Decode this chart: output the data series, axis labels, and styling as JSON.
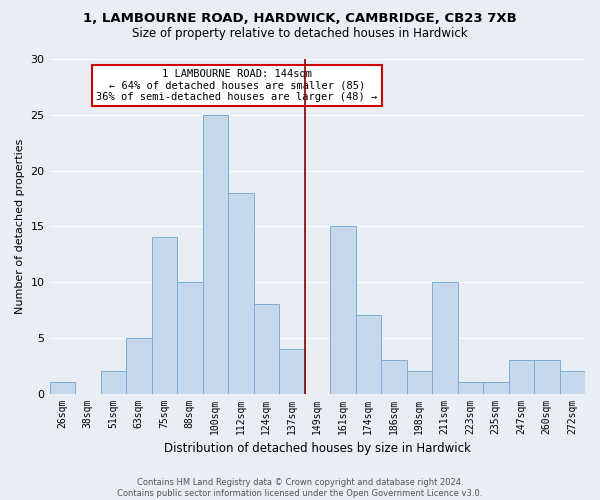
{
  "title1": "1, LAMBOURNE ROAD, HARDWICK, CAMBRIDGE, CB23 7XB",
  "title2": "Size of property relative to detached houses in Hardwick",
  "xlabel": "Distribution of detached houses by size in Hardwick",
  "ylabel": "Number of detached properties",
  "bar_labels": [
    "26sqm",
    "38sqm",
    "51sqm",
    "63sqm",
    "75sqm",
    "88sqm",
    "100sqm",
    "112sqm",
    "124sqm",
    "137sqm",
    "149sqm",
    "161sqm",
    "174sqm",
    "186sqm",
    "198sqm",
    "211sqm",
    "223sqm",
    "235sqm",
    "247sqm",
    "260sqm",
    "272sqm"
  ],
  "bar_values": [
    1,
    0,
    2,
    5,
    14,
    10,
    25,
    18,
    8,
    4,
    0,
    15,
    7,
    3,
    2,
    10,
    1,
    1,
    3,
    3,
    2
  ],
  "bar_color": "#c5d8ec",
  "bar_edge_color": "#7aaed0",
  "vline_x": 9.5,
  "vline_color": "#8b0000",
  "ylim": [
    0,
    30
  ],
  "yticks": [
    0,
    5,
    10,
    15,
    20,
    25,
    30
  ],
  "annotation_title": "1 LAMBOURNE ROAD: 144sqm",
  "annotation_line1": "← 64% of detached houses are smaller (85)",
  "annotation_line2": "36% of semi-detached houses are larger (48) →",
  "annotation_box_color": "#ffffff",
  "annotation_box_edge": "#cc0000",
  "footer1": "Contains HM Land Registry data © Crown copyright and database right 2024.",
  "footer2": "Contains public sector information licensed under the Open Government Licence v3.0.",
  "bg_color": "#e8eef4",
  "grid_color": "#ffffff"
}
